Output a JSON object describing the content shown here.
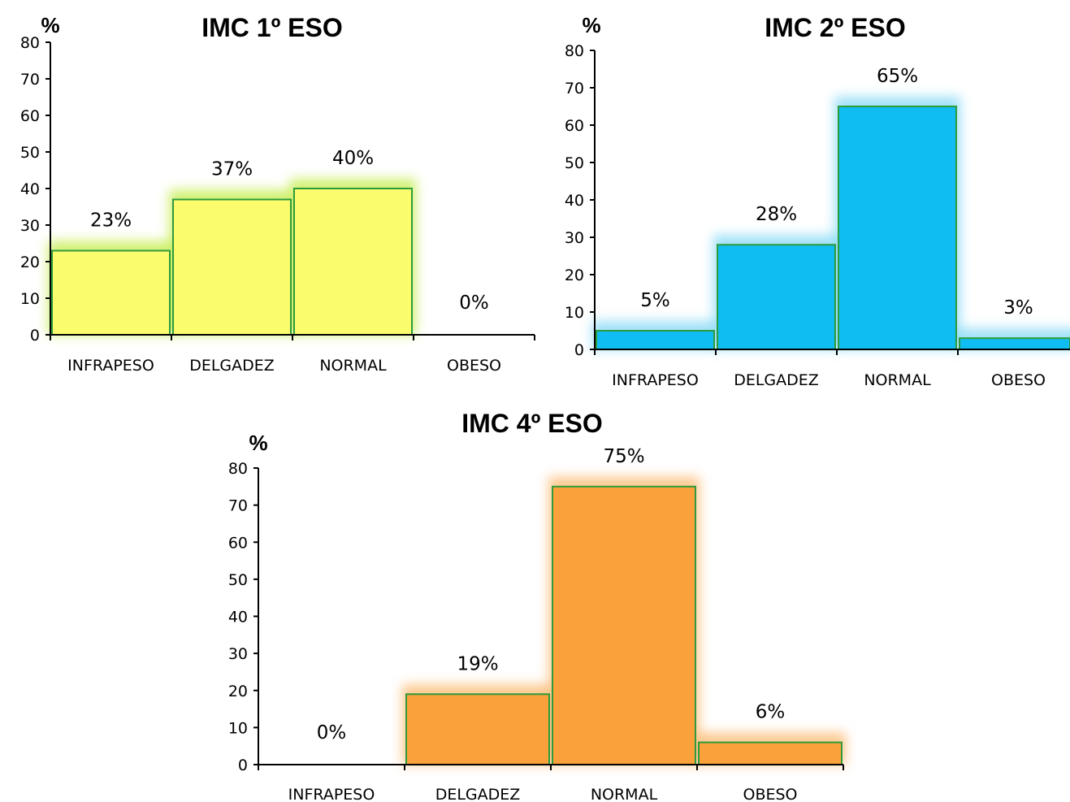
{
  "colors": {
    "bar_border": "#2e9b3c",
    "axis": "#000000"
  },
  "chart_data": [
    {
      "type": "bar",
      "title": "IMC 1º ESO",
      "ylabel": "%",
      "xlabel": "",
      "categories": [
        "INFRAPESO",
        "DELGADEZ",
        "NORMAL",
        "OBESO"
      ],
      "values": [
        23,
        37,
        40,
        0
      ],
      "data_labels": [
        "23%",
        "37%",
        "40%",
        "0%"
      ],
      "ylim": [
        0,
        80
      ],
      "yticks": [
        0,
        10,
        20,
        30,
        40,
        50,
        60,
        70,
        80
      ],
      "grid": false,
      "legend": "none",
      "bar_color": "#fbfb6e",
      "glow_color": "#c9ee5a"
    },
    {
      "type": "bar",
      "title": "IMC 2º ESO",
      "ylabel": "%",
      "xlabel": "",
      "categories": [
        "INFRAPESO",
        "DELGADEZ",
        "NORMAL",
        "OBESO"
      ],
      "values": [
        5,
        28,
        65,
        3
      ],
      "data_labels": [
        "5%",
        "28%",
        "65%",
        "3%"
      ],
      "ylim": [
        0,
        80
      ],
      "yticks": [
        0,
        10,
        20,
        30,
        40,
        50,
        60,
        70,
        80
      ],
      "grid": false,
      "legend": "none",
      "bar_color": "#0fbdf2",
      "glow_color": "#8fdcf7"
    },
    {
      "type": "bar",
      "title": "IMC 4º ESO",
      "ylabel": "%",
      "xlabel": "",
      "categories": [
        "INFRAPESO",
        "DELGADEZ",
        "NORMAL",
        "OBESO"
      ],
      "values": [
        0,
        19,
        75,
        6
      ],
      "data_labels": [
        "0%",
        "19%",
        "75%",
        "6%"
      ],
      "ylim": [
        0,
        80
      ],
      "yticks": [
        0,
        10,
        20,
        30,
        40,
        50,
        60,
        70,
        80
      ],
      "grid": false,
      "legend": "none",
      "bar_color": "#fba13c",
      "glow_color": "#fbbf7c"
    }
  ]
}
